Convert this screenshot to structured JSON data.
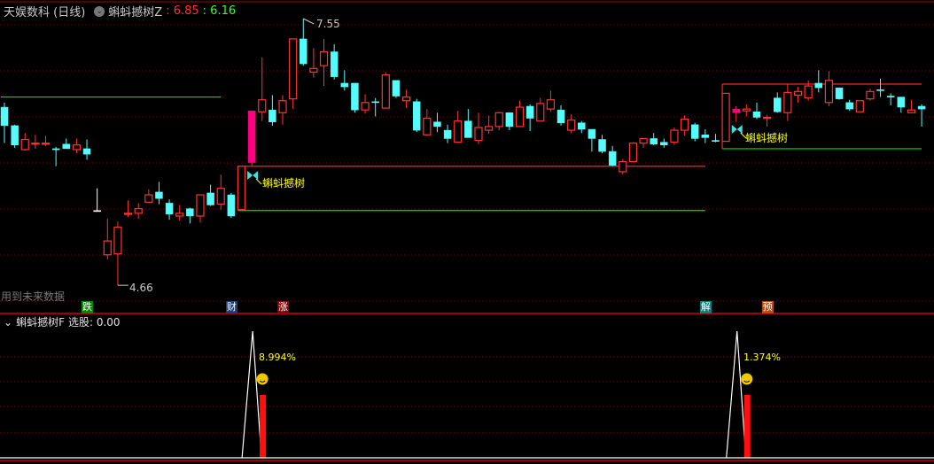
{
  "header": {
    "stock": "天娱数科 (日线)",
    "indicator": "蝌蚪撼树Z",
    "value1": ": 6.85",
    "value2": ": 6.16"
  },
  "sub_header": {
    "indicator": "蝌蚪撼树F",
    "label": "选股: 0.00"
  },
  "future_data_note": "用到未来数据",
  "colors": {
    "up": "#ff3232",
    "down": "#54fcfc",
    "limit": "#ff0080",
    "doji": "#ffffff",
    "support": "#00e000",
    "resistance": "#ff2020",
    "signal": "#ffff00"
  },
  "badges": [
    {
      "text": "跌",
      "candle": 8,
      "color": "#008800"
    },
    {
      "text": "财",
      "candle": 22,
      "color": "#1a3c7a"
    },
    {
      "text": "涨",
      "candle": 27,
      "color": "#8b0000"
    },
    {
      "text": "解",
      "candle": 68,
      "color": "#00807a"
    },
    {
      "text": "预",
      "candle": 74,
      "color": "#b84a10"
    }
  ],
  "chart_data": {
    "type": "candlestick",
    "price_range": [
      4.66,
      7.55
    ],
    "max_label": "7.55",
    "min_label": "4.66",
    "max_candle": 29,
    "min_candle": 11,
    "candles": [
      [
        6.59,
        6.64,
        6.2,
        6.39,
        "c"
      ],
      [
        6.39,
        6.4,
        6.15,
        6.18,
        "c"
      ],
      [
        6.13,
        6.31,
        6.12,
        6.24,
        "r"
      ],
      [
        6.2,
        6.29,
        6.14,
        6.2,
        "r"
      ],
      [
        6.2,
        6.28,
        6.17,
        6.2,
        "r"
      ],
      [
        6.14,
        6.16,
        5.95,
        6.14,
        "c"
      ],
      [
        6.19,
        6.25,
        6.14,
        6.14,
        "c"
      ],
      [
        6.13,
        6.25,
        6.09,
        6.18,
        "r"
      ],
      [
        6.14,
        6.24,
        6.02,
        6.08,
        "c"
      ],
      [
        5.47,
        5.71,
        5.47,
        5.47,
        "w"
      ],
      [
        4.99,
        5.38,
        4.94,
        5.14,
        "r"
      ],
      [
        5.0,
        5.35,
        4.66,
        5.29,
        "r"
      ],
      [
        5.44,
        5.58,
        5.4,
        5.44,
        "r"
      ],
      [
        5.44,
        5.55,
        5.38,
        5.49,
        "r"
      ],
      [
        5.56,
        5.7,
        5.56,
        5.64,
        "r"
      ],
      [
        5.67,
        5.78,
        5.54,
        5.6,
        "c"
      ],
      [
        5.55,
        5.59,
        5.37,
        5.43,
        "c"
      ],
      [
        5.41,
        5.53,
        5.36,
        5.44,
        "r"
      ],
      [
        5.49,
        5.5,
        5.33,
        5.41,
        "c"
      ],
      [
        5.41,
        5.64,
        5.34,
        5.64,
        "r"
      ],
      [
        5.66,
        5.75,
        5.52,
        5.53,
        "c"
      ],
      [
        5.54,
        5.86,
        5.48,
        5.71,
        "r"
      ],
      [
        5.64,
        5.66,
        5.39,
        5.41,
        "c"
      ],
      [
        5.48,
        5.95,
        5.48,
        5.95,
        "r"
      ],
      [
        5.99,
        6.55,
        5.95,
        6.55,
        "p"
      ],
      [
        6.54,
        7.13,
        6.44,
        6.67,
        "r"
      ],
      [
        6.56,
        6.72,
        6.39,
        6.43,
        "c"
      ],
      [
        6.53,
        6.72,
        6.4,
        6.66,
        "r"
      ],
      [
        6.68,
        7.33,
        6.57,
        7.33,
        "r"
      ],
      [
        7.33,
        7.55,
        7.04,
        7.06,
        "c"
      ],
      [
        6.97,
        7.23,
        6.91,
        7.01,
        "r"
      ],
      [
        7.04,
        7.33,
        6.82,
        7.19,
        "r"
      ],
      [
        7.19,
        7.27,
        6.89,
        6.92,
        "c"
      ],
      [
        6.85,
        6.99,
        6.77,
        6.81,
        "c"
      ],
      [
        6.85,
        6.85,
        6.53,
        6.56,
        "c"
      ],
      [
        6.56,
        6.73,
        6.52,
        6.64,
        "r"
      ],
      [
        6.65,
        6.69,
        6.49,
        6.65,
        "c"
      ],
      [
        6.58,
        6.97,
        6.58,
        6.94,
        "r"
      ],
      [
        6.88,
        6.88,
        6.69,
        6.71,
        "c"
      ],
      [
        6.66,
        6.78,
        6.58,
        6.7,
        "r"
      ],
      [
        6.65,
        6.68,
        6.32,
        6.34,
        "c"
      ],
      [
        6.29,
        6.57,
        6.28,
        6.47,
        "r"
      ],
      [
        6.43,
        6.53,
        6.32,
        6.38,
        "c"
      ],
      [
        6.34,
        6.4,
        6.2,
        6.25,
        "c"
      ],
      [
        6.21,
        6.55,
        6.21,
        6.44,
        "r"
      ],
      [
        6.44,
        6.57,
        6.26,
        6.26,
        "c"
      ],
      [
        6.23,
        6.53,
        6.19,
        6.37,
        "r"
      ],
      [
        6.34,
        6.5,
        6.3,
        6.38,
        "r"
      ],
      [
        6.38,
        6.54,
        6.34,
        6.53,
        "r"
      ],
      [
        6.53,
        6.53,
        6.34,
        6.38,
        "c"
      ],
      [
        6.38,
        6.66,
        6.38,
        6.59,
        "r"
      ],
      [
        6.6,
        6.62,
        6.33,
        6.47,
        "c"
      ],
      [
        6.44,
        6.69,
        6.44,
        6.63,
        "r"
      ],
      [
        6.57,
        6.77,
        6.54,
        6.67,
        "r"
      ],
      [
        6.56,
        6.61,
        6.39,
        6.42,
        "c"
      ],
      [
        6.34,
        6.51,
        6.31,
        6.45,
        "r"
      ],
      [
        6.42,
        6.44,
        6.31,
        6.35,
        "c"
      ],
      [
        6.35,
        6.35,
        6.11,
        6.25,
        "c"
      ],
      [
        6.24,
        6.29,
        6.09,
        6.11,
        "c"
      ],
      [
        6.11,
        6.17,
        5.95,
        5.96,
        "c"
      ],
      [
        5.89,
        6.03,
        5.86,
        6.0,
        "r"
      ],
      [
        6.0,
        6.21,
        6.0,
        6.2,
        "r"
      ],
      [
        6.2,
        6.25,
        6.15,
        6.25,
        "r"
      ],
      [
        6.25,
        6.31,
        6.18,
        6.19,
        "c"
      ],
      [
        6.21,
        6.25,
        6.15,
        6.18,
        "c"
      ],
      [
        6.21,
        6.37,
        6.18,
        6.34,
        "r"
      ],
      [
        6.34,
        6.5,
        6.28,
        6.46,
        "r"
      ],
      [
        6.4,
        6.42,
        6.22,
        6.25,
        "c"
      ],
      [
        6.29,
        6.35,
        6.2,
        6.26,
        "c"
      ],
      [
        6.23,
        6.3,
        6.21,
        6.23,
        "c"
      ],
      [
        6.22,
        6.74,
        6.22,
        6.74,
        "r"
      ],
      [
        6.53,
        6.6,
        6.43,
        6.57,
        "p"
      ],
      [
        6.55,
        6.62,
        6.49,
        6.57,
        "r"
      ],
      [
        6.54,
        6.64,
        6.46,
        6.48,
        "c"
      ],
      [
        6.48,
        6.51,
        6.38,
        6.48,
        "r"
      ],
      [
        6.69,
        6.75,
        6.53,
        6.54,
        "c"
      ],
      [
        6.53,
        6.84,
        6.44,
        6.75,
        "r"
      ],
      [
        6.72,
        6.81,
        6.64,
        6.76,
        "r"
      ],
      [
        6.69,
        6.88,
        6.66,
        6.82,
        "r"
      ],
      [
        6.85,
        6.99,
        6.75,
        6.8,
        "c"
      ],
      [
        6.64,
        6.98,
        6.6,
        6.88,
        "r"
      ],
      [
        6.8,
        6.8,
        6.67,
        6.68,
        "c"
      ],
      [
        6.64,
        6.67,
        6.55,
        6.57,
        "c"
      ],
      [
        6.54,
        6.66,
        6.53,
        6.66,
        "r"
      ],
      [
        6.68,
        6.79,
        6.66,
        6.76,
        "r"
      ],
      [
        6.78,
        6.9,
        6.7,
        6.78,
        "c"
      ],
      [
        6.71,
        6.74,
        6.61,
        6.71,
        "c"
      ],
      [
        6.7,
        6.7,
        6.53,
        6.59,
        "c"
      ],
      [
        6.53,
        6.67,
        6.53,
        6.56,
        "r"
      ],
      [
        6.6,
        6.62,
        6.38,
        6.57,
        "c"
      ]
    ],
    "levels": [
      {
        "price": 6.7,
        "from": 0,
        "to": 21,
        "color": "support"
      },
      {
        "price": 5.95,
        "from": 23,
        "to": 68,
        "color": "resistance"
      },
      {
        "price": 5.47,
        "from": 23,
        "to": 68,
        "color": "support"
      },
      {
        "price": 6.84,
        "from": 70,
        "to": 89,
        "color": "resistance"
      },
      {
        "price": 6.14,
        "from": 70,
        "to": 89,
        "color": "support"
      }
    ],
    "signals": [
      {
        "candle": 24,
        "label": "蝌蚪撼树",
        "pct": "8.994%"
      },
      {
        "candle": 71,
        "label": "蝌蚪撼树",
        "pct": "1.374%"
      }
    ]
  }
}
